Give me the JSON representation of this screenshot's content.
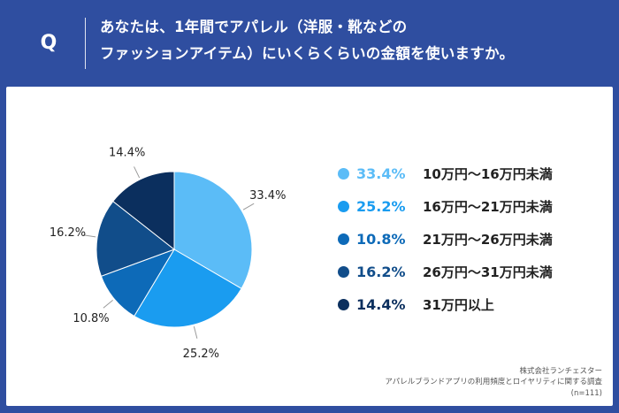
{
  "header": {
    "q_mark": "Q",
    "question_line1": "あなたは、1年間でアパレル（洋服・靴などの",
    "question_line2": "ファッションアイテム）にいくらくらいの金額を使いますか。"
  },
  "chart_data": {
    "type": "pie",
    "start_angle_deg": 0,
    "direction": "clockwise",
    "legend_position": "right",
    "slices": [
      {
        "label": "10万円〜16万円未満",
        "value": 33.4,
        "display": "33.4%",
        "color": "#5bbcf7"
      },
      {
        "label": "16万円〜21万円未満",
        "value": 25.2,
        "display": "25.2%",
        "color": "#1a9cf0"
      },
      {
        "label": "21万円〜26万円未満",
        "value": 10.8,
        "display": "10.8%",
        "color": "#0d6ab8"
      },
      {
        "label": "26万円〜31万円未満",
        "value": 16.2,
        "display": "16.2%",
        "color": "#114d8a"
      },
      {
        "label": "31万円以上",
        "value": 14.4,
        "display": "14.4%",
        "color": "#0b2f5e"
      }
    ]
  },
  "source": {
    "line1": "株式会社ランチェスター",
    "line2": "アパレルブランドアプリの利用頻度とロイヤリティに関する調査",
    "line3": "(n=111)"
  }
}
